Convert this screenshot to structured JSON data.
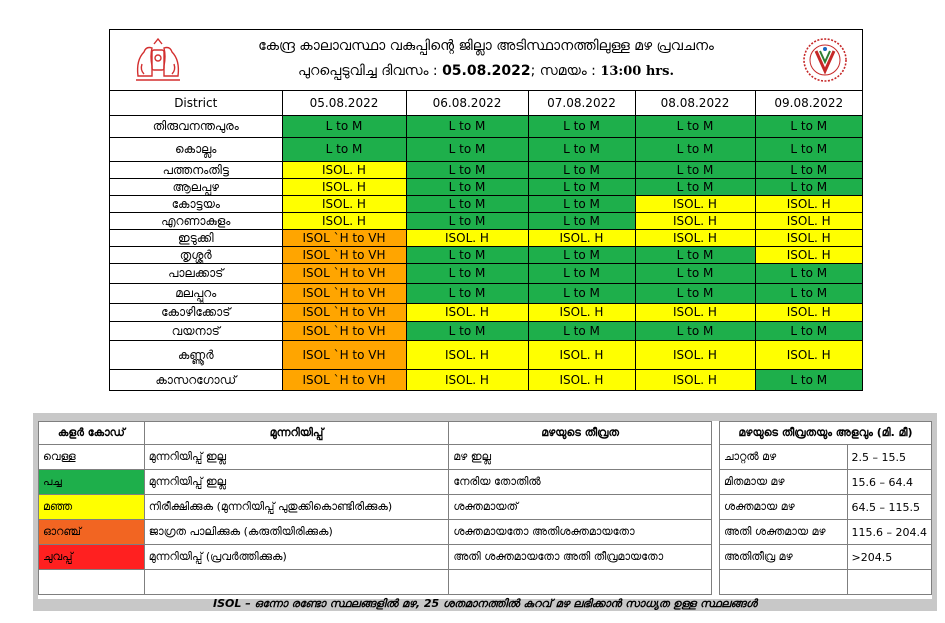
{
  "header": {
    "title": "കേന്ദ്ര കാലാവസ്ഥാ വകുപ്പിന്റെ ജില്ലാ അടിസ്ഥാനത്തിലുള്ള മഴ പ്രവചനം",
    "issued_label": "പുറപ്പെടുവിച്ച ദിവസം : ",
    "issued_date": "05.08.2022",
    "time_label": "; സമയം : ",
    "issued_time": "13:00 hrs."
  },
  "table": {
    "district_header": "District",
    "dates": [
      "05.08.2022",
      "06.08.2022",
      "07.08.2022",
      "08.08.2022",
      "09.08.2022"
    ],
    "rows": [
      {
        "district": "തിരുവനന്തപുരം",
        "values": [
          "L to M",
          "L to M",
          "L to M",
          "L to M",
          "L to M"
        ],
        "colors": [
          "green",
          "green",
          "green",
          "green",
          "green"
        ]
      },
      {
        "district": "കൊല്ലം",
        "values": [
          "L to M",
          "L to M",
          "L to M",
          "L to M",
          "L to M"
        ],
        "colors": [
          "green",
          "green",
          "green",
          "green",
          "green"
        ]
      },
      {
        "district": "പത്തനംതിട്ട",
        "values": [
          "ISOL. H",
          "L to M",
          "L to M",
          "L to M",
          "L to M"
        ],
        "colors": [
          "yellow",
          "green",
          "green",
          "green",
          "green"
        ]
      },
      {
        "district": "ആലപ്പുഴ",
        "values": [
          "ISOL. H",
          "L to M",
          "L to M",
          "L to M",
          "L to M"
        ],
        "colors": [
          "yellow",
          "green",
          "green",
          "green",
          "green"
        ]
      },
      {
        "district": "കോട്ടയം",
        "values": [
          "ISOL. H",
          "L to M",
          "L to M",
          "ISOL. H",
          "ISOL. H"
        ],
        "colors": [
          "yellow",
          "green",
          "green",
          "yellow",
          "yellow"
        ]
      },
      {
        "district": "എറണാകുളം",
        "values": [
          "ISOL. H",
          "L to M",
          "L to M",
          "ISOL. H",
          "ISOL. H"
        ],
        "colors": [
          "yellow",
          "green",
          "green",
          "yellow",
          "yellow"
        ]
      },
      {
        "district": "ഇടുക്കി",
        "values": [
          "ISOL `H to VH",
          "ISOL. H",
          "ISOL. H",
          "ISOL. H",
          "ISOL. H"
        ],
        "colors": [
          "orange",
          "yellow",
          "yellow",
          "yellow",
          "yellow"
        ]
      },
      {
        "district": "തൃശ്ശൂർ",
        "values": [
          "ISOL `H to VH",
          "L to M",
          "L to M",
          "L to M",
          "ISOL. H"
        ],
        "colors": [
          "orange",
          "green",
          "green",
          "green",
          "yellow"
        ]
      },
      {
        "district": "പാലക്കാട്",
        "values": [
          "ISOL `H to VH",
          "L to M",
          "L to M",
          "L to M",
          "L to M"
        ],
        "colors": [
          "orange",
          "green",
          "green",
          "green",
          "green"
        ]
      },
      {
        "district": "മലപ്പുറം",
        "values": [
          "ISOL `H to VH",
          "L to M",
          "L to M",
          "L to M",
          "L to M"
        ],
        "colors": [
          "orange",
          "green",
          "green",
          "green",
          "green"
        ]
      },
      {
        "district": "കോഴിക്കോട്",
        "values": [
          "ISOL `H to VH",
          "ISOL. H",
          "ISOL. H",
          "ISOL. H",
          "ISOL. H"
        ],
        "colors": [
          "orange",
          "yellow",
          "yellow",
          "yellow",
          "yellow"
        ]
      },
      {
        "district": "വയനാട്",
        "values": [
          "ISOL `H to VH",
          "L to M",
          "L to M",
          "L to M",
          "L to M"
        ],
        "colors": [
          "orange",
          "green",
          "green",
          "green",
          "green"
        ]
      },
      {
        "district": "കണ്ണൂർ",
        "values": [
          "ISOL `H to VH",
          "ISOL. H",
          "ISOL. H",
          "ISOL. H",
          "ISOL. H"
        ],
        "colors": [
          "orange",
          "yellow",
          "yellow",
          "yellow",
          "yellow"
        ]
      },
      {
        "district": "കാസറഗോഡ്",
        "values": [
          "ISOL `H to VH",
          "ISOL. H",
          "ISOL. H",
          "ISOL. H",
          "L to M"
        ],
        "colors": [
          "orange",
          "yellow",
          "yellow",
          "yellow",
          "green"
        ]
      }
    ]
  },
  "legend": {
    "headers": {
      "color_code": "കളർ കോഡ്",
      "warning": "മുന്നറിയിപ്പ്",
      "intensity": "മഴയുടെ തീവ്രത",
      "intensity_amount": "മഴയുടെ തീവ്രതയും അളവും (മി. മീ)"
    },
    "rows": [
      {
        "color": "വെള്ള",
        "swatch": "white",
        "warning": "മുന്നറിയിപ്പ് ഇല്ല",
        "intensity": "മഴ ഇല്ല"
      },
      {
        "color": "പച്ച",
        "swatch": "green",
        "warning": "മുന്നറിയിപ്പ് ഇല്ല",
        "intensity": "നേരിയ തോതിൽ"
      },
      {
        "color": "മഞ്ഞ",
        "swatch": "yellow",
        "warning": "നിരീക്ഷിക്കുക (മുന്നറിയിപ്പ് പുതുക്കികൊണ്ടിരിക്കുക)",
        "intensity": "ശക്തമായത്"
      },
      {
        "color": "ഓറഞ്ച്",
        "swatch": "orange",
        "warning": "ജാഗ്രത പാലിക്കുക (കരുതിയിരിക്കുക)",
        "intensity": "ശക്തമായതോ അതിശക്തമായതോ"
      },
      {
        "color": "ചുവപ്പ്",
        "swatch": "red",
        "warning": "മുന്നറിയിപ്പ് (പ്രവർത്തിക്കുക)",
        "intensity": "അതി ശക്തമായതോ അതി തീവ്രമായതോ"
      }
    ],
    "amounts": [
      {
        "label": "ചാറ്റൽ മഴ",
        "range": "2.5 – 15.5"
      },
      {
        "label": "മിതമായ മഴ",
        "range": "15.6 – 64.4"
      },
      {
        "label": "ശക്തമായ മഴ",
        "range": "64.5 – 115.5"
      },
      {
        "label": "അതി ശക്തമായ മഴ",
        "range": "115.6 – 204.4"
      },
      {
        "label": "അതിതീവ്ര മഴ",
        "range": ">204.5"
      }
    ],
    "note": "ISOL – ഒന്നോ രണ്ടോ സ്ഥലങ്ങളിൽ മഴ, 25 ശതമാനത്തിൽ കുറവ് മഴ ലഭിക്കാൻ സാധ്യത ഉള്ള സ്ഥലങ്ങൾ"
  },
  "colors": {
    "green": "#1eaf4b",
    "yellow": "#ffff00",
    "orange": "#ffa500",
    "legend_orange": "#f26522",
    "red": "#ff2020"
  },
  "icons": {
    "left_logo": "kerala-emblem-icon",
    "right_logo": "imd-logo-icon"
  }
}
